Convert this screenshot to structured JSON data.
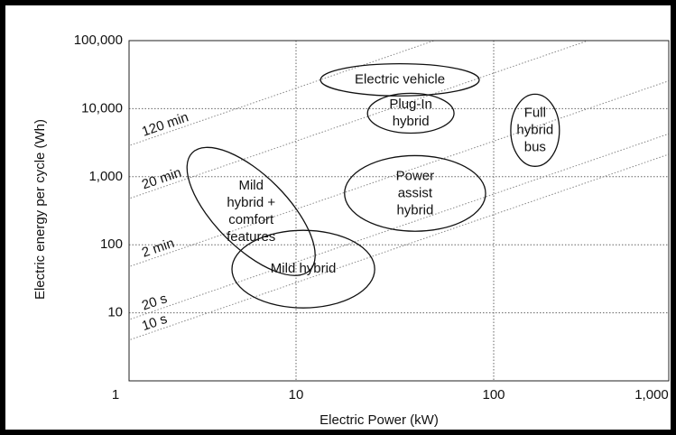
{
  "chart_data": {
    "type": "ragone",
    "x_label": "Electric Power (kW)",
    "y_label": "Electric energy per cycle (Wh)",
    "log_x": true,
    "log_y": true,
    "grid": true,
    "xlim": [
      1,
      1000
    ],
    "xticks": [
      1,
      10,
      100,
      {
        "value": 1000,
        "label": "1,000"
      }
    ],
    "ylim": [
      1,
      100000
    ],
    "yticks": [
      10,
      100,
      {
        "value": 1000,
        "label": "1,000"
      },
      {
        "value": 10000,
        "label": "10,000"
      },
      {
        "value": 100000,
        "label": "100,000"
      }
    ],
    "time_lines": [
      {
        "label": "120 min",
        "wh_per_kw": 2000
      },
      {
        "label": "20 min",
        "wh_per_kw": 333.3
      },
      {
        "label": "2 min",
        "wh_per_kw": 33.33
      },
      {
        "label": "20 s",
        "wh_per_kw": 5.556
      },
      {
        "label": "10 s",
        "wh_per_kw": 2.778
      }
    ],
    "regions": [
      {
        "lines": [
          "Electric vehicle"
        ],
        "x_range": [
          13.3,
          84.5
        ],
        "y_range": [
          15400,
          45700
        ],
        "tilt": 0
      },
      {
        "lines": [
          "Plug-In",
          "hybrid"
        ],
        "x_range": [
          23,
          63
        ],
        "y_range": [
          4370,
          16800
        ],
        "tilt": 0
      },
      {
        "lines": [
          "Full",
          "hybrid",
          "bus"
        ],
        "x_range": [
          122,
          215
        ],
        "y_range": [
          1420,
          16300
        ],
        "tilt": 0
      },
      {
        "lines": [
          "Power",
          "assist",
          "hybrid"
        ],
        "x_range": [
          17.6,
          91
        ],
        "y_range": [
          158,
          2040
        ],
        "tilt": 0
      },
      {
        "lines": [
          "Mild",
          "hybrid +",
          "comfort",
          "features"
        ],
        "x_range": [
          2.25,
          15.6
        ],
        "y_range": [
          91,
          1047
        ],
        "tilt": 45
      },
      {
        "lines": [
          "Mild hybrid"
        ],
        "x_range": [
          4.74,
          25
        ],
        "y_range": [
          11.8,
          163
        ],
        "tilt": 0
      }
    ]
  }
}
